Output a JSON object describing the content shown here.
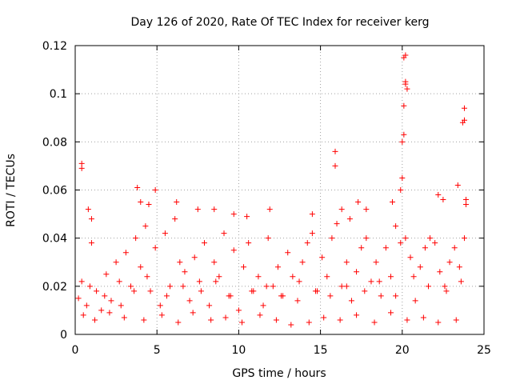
{
  "chart_data": {
    "type": "scatter",
    "title": "Day 126 of 2020, Rate Of TEC Index for receiver kerg",
    "xlabel": "GPS time / hours",
    "ylabel": "ROTI / TECUs",
    "xlim": [
      0,
      25
    ],
    "ylim": [
      0,
      0.12
    ],
    "x_ticks": [
      0,
      5,
      10,
      15,
      20,
      25
    ],
    "x_tick_labels": [
      "0",
      "5",
      "10",
      "15",
      "20",
      "25"
    ],
    "y_ticks": [
      0,
      0.02,
      0.04,
      0.06,
      0.08,
      0.1,
      0.12
    ],
    "y_tick_labels": [
      "0",
      "0.02",
      "0.04",
      "0.06",
      "0.08",
      "0.1",
      "0.12"
    ],
    "grid": true,
    "marker": "+",
    "color": "#ff0000",
    "series": [
      {
        "x": [
          0.2,
          0.4,
          0.7,
          1.0,
          1.3,
          1.6,
          1.9,
          2.2,
          2.5,
          2.8,
          3.1,
          3.4,
          3.7,
          4.0,
          4.3,
          4.6,
          4.9,
          5.2,
          5.5,
          5.8,
          6.1,
          6.4,
          6.7,
          7.0,
          7.3,
          7.6,
          7.9,
          8.2,
          8.5,
          8.8,
          9.1,
          9.4,
          9.7,
          10.0,
          10.3,
          10.6,
          10.9,
          11.2,
          11.5,
          11.8,
          12.1,
          12.4,
          12.7,
          13.0,
          13.3,
          13.6,
          13.9,
          14.2,
          14.5,
          14.8,
          15.1,
          15.4,
          15.7,
          16.0,
          16.3,
          16.6,
          16.9,
          17.2,
          17.5,
          17.8,
          18.1,
          18.4,
          18.7,
          19.0,
          19.3,
          19.6,
          19.9,
          20.2,
          20.5,
          20.8,
          21.1,
          21.4,
          21.7,
          22.0,
          22.3,
          22.6,
          22.9,
          23.2,
          23.5,
          23.8,
          0.4,
          0.4,
          0.8,
          1.0,
          3.8,
          4.0,
          4.5,
          4.9,
          6.2,
          7.5,
          8.5,
          9.7,
          10.5,
          11.9,
          14.5,
          15.9,
          15.9,
          16.3,
          16.8,
          17.3,
          17.8,
          19.4,
          19.9,
          20.0,
          20.1,
          20.1,
          20.2,
          20.2,
          20.3,
          20.0,
          20.1,
          20.2,
          22.2,
          22.5,
          23.4,
          23.7,
          23.8,
          23.8,
          23.9,
          23.9,
          0.5,
          1.2,
          2.1,
          3.0,
          4.2,
          5.3,
          6.3,
          7.2,
          8.3,
          9.2,
          10.2,
          11.3,
          12.3,
          13.2,
          14.3,
          15.2,
          16.2,
          17.2,
          18.3,
          19.3,
          20.3,
          21.3,
          22.2,
          23.3,
          0.9,
          1.8,
          2.7,
          3.6,
          4.4,
          5.6,
          6.6,
          7.7,
          8.6,
          9.5,
          10.8,
          11.7,
          12.6,
          13.7,
          14.7,
          15.6,
          16.6,
          17.7,
          18.6,
          19.6,
          20.7,
          21.6,
          22.7,
          23.6
        ],
        "y": [
          0.015,
          0.022,
          0.012,
          0.038,
          0.018,
          0.01,
          0.025,
          0.014,
          0.03,
          0.012,
          0.034,
          0.02,
          0.04,
          0.028,
          0.045,
          0.018,
          0.036,
          0.012,
          0.042,
          0.02,
          0.048,
          0.03,
          0.026,
          0.014,
          0.032,
          0.022,
          0.038,
          0.012,
          0.03,
          0.024,
          0.042,
          0.016,
          0.035,
          0.01,
          0.028,
          0.038,
          0.018,
          0.024,
          0.012,
          0.04,
          0.02,
          0.028,
          0.016,
          0.034,
          0.024,
          0.014,
          0.03,
          0.038,
          0.042,
          0.018,
          0.032,
          0.024,
          0.04,
          0.046,
          0.02,
          0.03,
          0.014,
          0.026,
          0.036,
          0.04,
          0.022,
          0.03,
          0.016,
          0.036,
          0.024,
          0.045,
          0.038,
          0.04,
          0.032,
          0.014,
          0.028,
          0.036,
          0.04,
          0.038,
          0.026,
          0.02,
          0.03,
          0.036,
          0.028,
          0.04,
          0.071,
          0.069,
          0.052,
          0.048,
          0.061,
          0.055,
          0.054,
          0.06,
          0.055,
          0.052,
          0.052,
          0.05,
          0.049,
          0.052,
          0.05,
          0.076,
          0.07,
          0.052,
          0.048,
          0.055,
          0.052,
          0.055,
          0.06,
          0.065,
          0.083,
          0.095,
          0.104,
          0.116,
          0.102,
          0.08,
          0.115,
          0.105,
          0.058,
          0.056,
          0.062,
          0.088,
          0.094,
          0.089,
          0.056,
          0.054,
          0.008,
          0.006,
          0.009,
          0.007,
          0.006,
          0.008,
          0.005,
          0.009,
          0.006,
          0.007,
          0.005,
          0.008,
          0.006,
          0.004,
          0.005,
          0.007,
          0.006,
          0.008,
          0.005,
          0.009,
          0.006,
          0.007,
          0.005,
          0.006,
          0.02,
          0.016,
          0.022,
          0.018,
          0.024,
          0.016,
          0.02,
          0.018,
          0.022,
          0.016,
          0.018,
          0.02,
          0.016,
          0.022,
          0.018,
          0.016,
          0.02,
          0.018,
          0.022,
          0.016,
          0.024,
          0.02,
          0.018,
          0.022
        ]
      }
    ]
  }
}
